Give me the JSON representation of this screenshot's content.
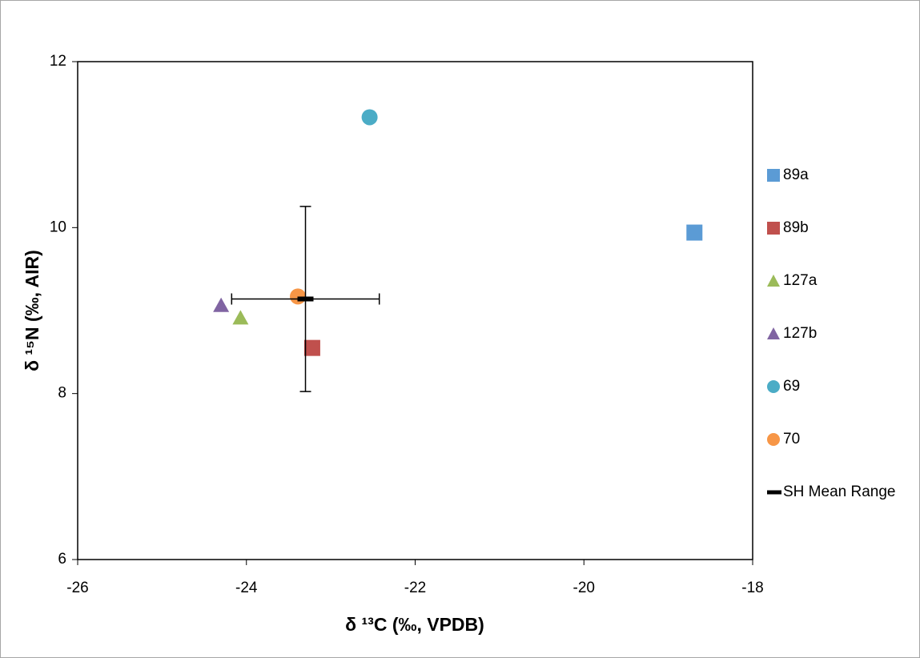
{
  "chart_data": {
    "type": "scatter",
    "x_label": "δ ¹³C (‰, VPDB)",
    "y_label": "δ ¹⁵N (‰, AIR)",
    "xlim": [
      -26,
      -18
    ],
    "xticks": [
      -26,
      -24,
      -22,
      -20,
      -18
    ],
    "ylim": [
      6,
      12
    ],
    "yticks": [
      6,
      8,
      10,
      12
    ],
    "grid": false,
    "legend": "right",
    "series": [
      {
        "name": "89a",
        "color": "#5b9bd5",
        "marker": "square",
        "x": [
          -18.69
        ],
        "values": [
          9.94
        ]
      },
      {
        "name": "89b",
        "color": "#c0504d",
        "marker": "square",
        "x": [
          -23.22
        ],
        "values": [
          8.55
        ]
      },
      {
        "name": "127a",
        "color": "#9bbb59",
        "marker": "triangle",
        "x": [
          -24.07
        ],
        "values": [
          8.91
        ]
      },
      {
        "name": "127b",
        "color": "#8064a2",
        "marker": "triangle",
        "x": [
          -24.3
        ],
        "values": [
          9.06
        ]
      },
      {
        "name": "69",
        "color": "#4bacc6",
        "marker": "circle",
        "x": [
          -22.54
        ],
        "values": [
          11.33
        ]
      },
      {
        "name": "70",
        "color": "#f79646",
        "marker": "circle",
        "x": [
          -23.39
        ],
        "values": [
          9.17
        ]
      },
      {
        "name": "SH Mean Range",
        "color": "#000000",
        "marker": "dash",
        "x": [
          -23.3
        ],
        "values": [
          9.14
        ],
        "xerr": [
          0.875
        ],
        "yerr": [
          1.115
        ]
      }
    ]
  }
}
